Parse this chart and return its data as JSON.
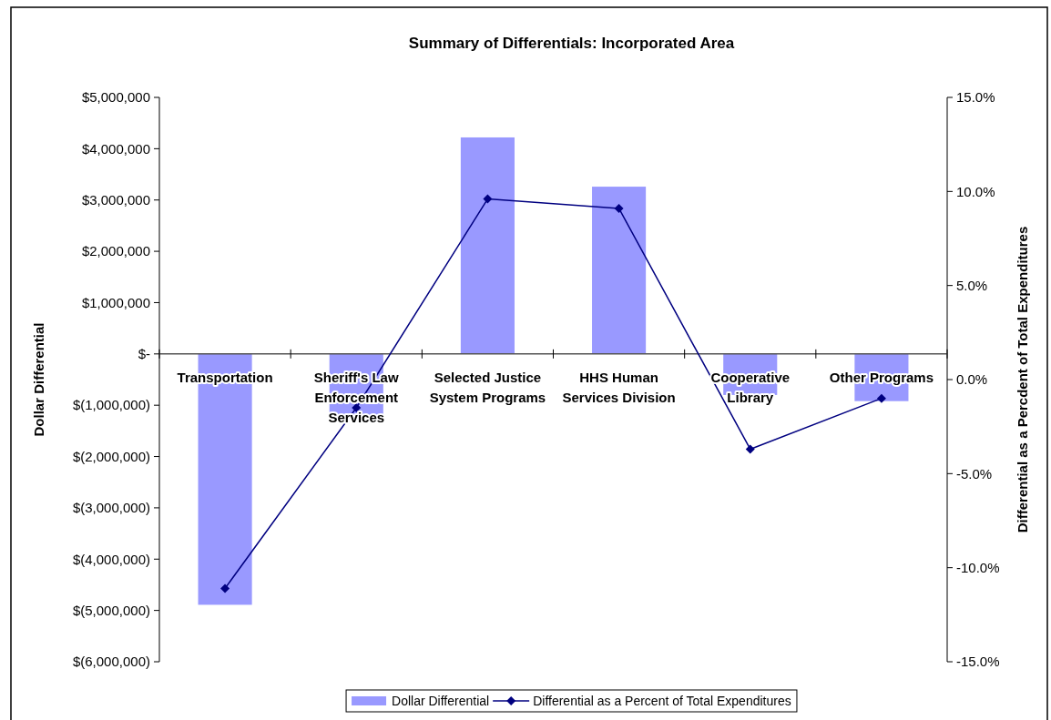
{
  "chart_data": {
    "type": "bar",
    "title": "Summary of Differentials: Incorporated Area",
    "ylabel": "Dollar Differential",
    "y2label": "Differential as a Percdent of Total Expenditures",
    "categories": [
      "Transportation",
      "Sheriff's Law Enforcement Services",
      "Selected Justice System Programs",
      "HHS Human Services Division",
      "Cooperative Library",
      "Other Programs"
    ],
    "series": [
      {
        "name": "Dollar Differential",
        "color": "#9999ff",
        "values": [
          -4890000,
          -1200000,
          4220000,
          3260000,
          -800000,
          -920000
        ]
      },
      {
        "name": "Differential as a Percent of Total Expenditures",
        "type": "line",
        "axis": "y2",
        "color": "#000080",
        "marker": "diamond",
        "values": [
          -11.1,
          -1.5,
          9.6,
          9.1,
          -3.7,
          -1.0
        ]
      }
    ],
    "ylim": [
      -6000000,
      5000000
    ],
    "yticks": [
      {
        "value": -6000000,
        "label": "$(6,000,000)"
      },
      {
        "value": -5000000,
        "label": "$(5,000,000)"
      },
      {
        "value": -4000000,
        "label": "$(4,000,000)"
      },
      {
        "value": -3000000,
        "label": "$(3,000,000)"
      },
      {
        "value": -2000000,
        "label": "$(2,000,000)"
      },
      {
        "value": -1000000,
        "label": "$(1,000,000)"
      },
      {
        "value": 0,
        "label": "$-"
      },
      {
        "value": 1000000,
        "label": "$1,000,000"
      },
      {
        "value": 2000000,
        "label": "$2,000,000"
      },
      {
        "value": 3000000,
        "label": "$3,000,000"
      },
      {
        "value": 4000000,
        "label": "$4,000,000"
      },
      {
        "value": 5000000,
        "label": "$5,000,000"
      }
    ],
    "y2lim": [
      -15,
      15
    ],
    "y2ticks": [
      {
        "value": -15,
        "label": "-15.0%"
      },
      {
        "value": -10,
        "label": "-10.0%"
      },
      {
        "value": -5,
        "label": "-5.0%"
      },
      {
        "value": 0,
        "label": "0.0%"
      },
      {
        "value": 5,
        "label": "5.0%"
      },
      {
        "value": 10,
        "label": "10.0%"
      },
      {
        "value": 15,
        "label": "15.0%"
      }
    ],
    "grid": false,
    "legend": "bottom"
  }
}
